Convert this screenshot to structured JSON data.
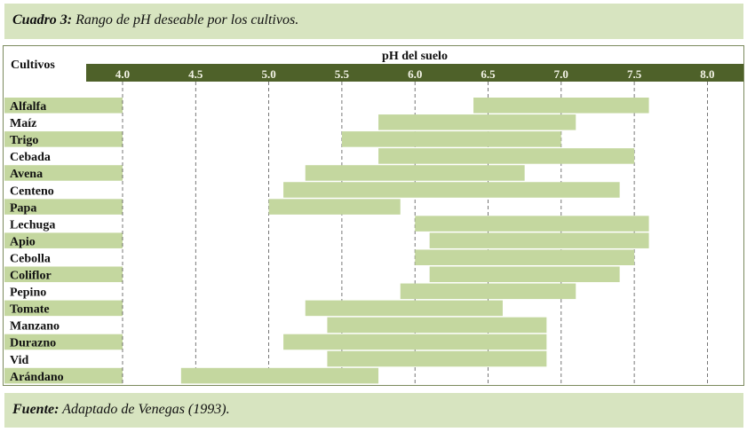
{
  "title": {
    "label": "Cuadro 3:",
    "text": " Rango de pH deseable por los cultivos."
  },
  "footer": {
    "label": "Fuente:",
    "text": " Adaptado de Venegas (1993)."
  },
  "colors": {
    "header": "#4e6129",
    "bar": "#c4d79f",
    "band": "#d7e4c0"
  },
  "chart_data": {
    "type": "bar",
    "orientation": "horizontal-range",
    "row_header": "Cultivos",
    "xlabel": "pH del suelo",
    "xlim": [
      4.0,
      8.0
    ],
    "ticks": [
      "4.0",
      "4.5",
      "5.0",
      "5.5",
      "6.0",
      "6.5",
      "7.0",
      "7.5",
      "8.0"
    ],
    "grid": true,
    "categories": [
      "Alfalfa",
      "Maíz",
      "Trigo",
      "Cebada",
      "Avena",
      "Centeno",
      "Papa",
      "Lechuga",
      "Apio",
      "Cebolla",
      "Coliflor",
      "Pepino",
      "Tomate",
      "Manzano",
      "Durazno",
      "Vid",
      "Arándano"
    ],
    "ranges": [
      [
        6.4,
        7.6
      ],
      [
        5.75,
        7.1
      ],
      [
        5.5,
        7.0
      ],
      [
        5.75,
        7.5
      ],
      [
        5.25,
        6.75
      ],
      [
        5.1,
        7.4
      ],
      [
        5.0,
        5.9
      ],
      [
        6.0,
        7.6
      ],
      [
        6.1,
        7.6
      ],
      [
        6.0,
        7.5
      ],
      [
        6.1,
        7.4
      ],
      [
        5.9,
        7.1
      ],
      [
        5.25,
        6.6
      ],
      [
        5.4,
        6.9
      ],
      [
        5.1,
        6.9
      ],
      [
        5.4,
        6.9
      ],
      [
        4.4,
        5.75
      ]
    ]
  }
}
